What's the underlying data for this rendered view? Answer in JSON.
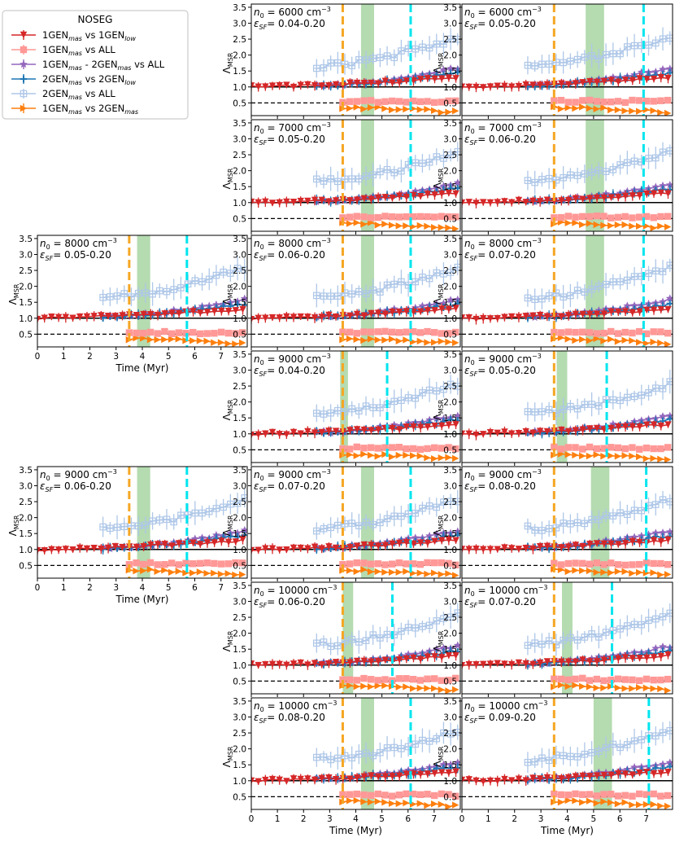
{
  "legend": {
    "title": "NOSEG",
    "entries": [
      {
        "key": "1gm_vs_1gl",
        "label": "1GEN",
        "sub": "mas",
        "mid": " vs 1GEN",
        "sub2": "low",
        "tail": "",
        "color": "#d62728",
        "marker": "tri_down"
      },
      {
        "key": "1gm_vs_all",
        "label": "1GEN",
        "sub": "mas",
        "mid": " vs ALL",
        "sub2": "",
        "tail": "",
        "color": "#ff9896",
        "marker": "square"
      },
      {
        "key": "1gm_2gm_vs_all",
        "label": "1GEN",
        "sub": "mas",
        "mid": " - 2GEN",
        "sub2": "mas",
        "tail": " vs ALL",
        "color": "#9467bd",
        "marker": "star"
      },
      {
        "key": "2gm_vs_2gl",
        "label": "2GEN",
        "sub": "mas",
        "mid": " vs 2GEN",
        "sub2": "low",
        "tail": "",
        "color": "#1f77b4",
        "marker": "plus"
      },
      {
        "key": "2gm_vs_all",
        "label": "2GEN",
        "sub": "mas",
        "mid": " vs ALL",
        "sub2": "",
        "tail": "",
        "color": "#aec7e8",
        "marker": "plus_square"
      },
      {
        "key": "1gm_vs_2gm",
        "label": "1GEN",
        "sub": "mas",
        "mid": " vs 2GEN",
        "sub2": "mas",
        "tail": "",
        "color": "#ff7f0e",
        "marker": "tri_right"
      }
    ]
  },
  "axes": {
    "ylabel": "Λ",
    "ylabel_sub": "MSR",
    "xlabel": "Time (Myr)",
    "yticks": [
      "0.5",
      "1.0",
      "1.5",
      "2.0",
      "2.5",
      "3.0",
      "3.5"
    ],
    "xticks": [
      "0",
      "1",
      "2",
      "3",
      "4",
      "5",
      "6",
      "7"
    ],
    "n0_prefix": "n",
    "n0_sub": "0",
    "n0_unit": "cm",
    "n0_exp": "−3",
    "eps_symbol": "ε",
    "eps_sub": "SF"
  },
  "colors": {
    "vline_orange": "#f5a623",
    "vline_cyan": "#00e5ee",
    "band": "#a8d5a2"
  },
  "chart_data": {
    "type": "line",
    "xlim": [
      0,
      8
    ],
    "ylim": [
      0.1,
      3.6
    ],
    "reference_lines": {
      "solid": 1.0,
      "dashed": 0.5
    },
    "panels": [
      {
        "id": "6000-0.04",
        "n0": "6000",
        "eps": "0.04-0.20",
        "orange": 3.5,
        "cyan": 6.1,
        "band": [
          4.2,
          4.7
        ]
      },
      {
        "id": "6000-0.05",
        "n0": "6000",
        "eps": "0.05-0.20",
        "orange": 3.5,
        "cyan": 6.9,
        "band": [
          4.7,
          5.4
        ]
      },
      {
        "id": "7000-0.05",
        "n0": "7000",
        "eps": "0.05-0.20",
        "orange": 3.5,
        "cyan": 6.1,
        "band": [
          4.2,
          4.7
        ]
      },
      {
        "id": "7000-0.06",
        "n0": "7000",
        "eps": "0.06-0.20",
        "orange": 3.5,
        "cyan": 6.9,
        "band": [
          4.7,
          5.4
        ]
      },
      {
        "id": "8000-0.05",
        "n0": "8000",
        "eps": "0.05-0.20",
        "orange": 3.5,
        "cyan": 5.7,
        "band": [
          3.8,
          4.3
        ]
      },
      {
        "id": "8000-0.06",
        "n0": "8000",
        "eps": "0.06-0.20",
        "orange": 3.5,
        "cyan": 6.1,
        "band": [
          4.2,
          4.7
        ]
      },
      {
        "id": "8000-0.07",
        "n0": "8000",
        "eps": "0.07-0.20",
        "orange": 3.5,
        "cyan": 6.9,
        "band": [
          4.7,
          5.4
        ]
      },
      {
        "id": "9000-0.04",
        "n0": "9000",
        "eps": "0.04-0.20",
        "orange": 3.5,
        "cyan": 5.2,
        "band": [
          3.4,
          3.7
        ]
      },
      {
        "id": "9000-0.05",
        "n0": "9000",
        "eps": "0.05-0.20",
        "orange": 3.5,
        "cyan": 5.5,
        "band": [
          3.6,
          4.0
        ]
      },
      {
        "id": "9000-0.06",
        "n0": "9000",
        "eps": "0.06-0.20",
        "orange": 3.5,
        "cyan": 5.7,
        "band": [
          3.8,
          4.3
        ]
      },
      {
        "id": "9000-0.07",
        "n0": "9000",
        "eps": "0.07-0.20",
        "orange": 3.5,
        "cyan": 6.1,
        "band": [
          4.2,
          4.7
        ]
      },
      {
        "id": "9000-0.08",
        "n0": "9000",
        "eps": "0.08-0.20",
        "orange": 3.5,
        "cyan": 7.0,
        "band": [
          4.9,
          5.6
        ]
      },
      {
        "id": "10000-0.06",
        "n0": "10000",
        "eps": "0.06-0.20",
        "orange": 3.5,
        "cyan": 5.4,
        "band": [
          3.5,
          3.9
        ]
      },
      {
        "id": "10000-0.07",
        "n0": "10000",
        "eps": "0.07-0.20",
        "orange": 3.5,
        "cyan": 5.7,
        "band": [
          3.8,
          4.2
        ]
      },
      {
        "id": "10000-0.08",
        "n0": "10000",
        "eps": "0.08-0.20",
        "orange": 3.5,
        "cyan": 6.1,
        "band": [
          4.2,
          4.7
        ]
      },
      {
        "id": "10000-0.09",
        "n0": "10000",
        "eps": "0.09-0.20",
        "orange": 3.5,
        "cyan": 7.1,
        "band": [
          5.0,
          5.7
        ]
      }
    ],
    "series_templates": {
      "1gm_vs_1gl": {
        "start": 0.0,
        "y0": 1.0,
        "y1": 1.3
      },
      "1gm_vs_all": {
        "start_orange": true,
        "y0": 0.55,
        "y1": 0.55
      },
      "1gm_2gm_vs_all": {
        "start": 2.5,
        "y0": 1.05,
        "y1": 1.6
      },
      "2gm_vs_2gl": {
        "start": 2.5,
        "y0": 1.05,
        "y1": 1.45
      },
      "2gm_vs_all": {
        "start": 2.5,
        "y0": 1.65,
        "y1": 2.6
      },
      "1gm_vs_2gm": {
        "start_orange": true,
        "y0": 0.35,
        "y1": 0.2
      }
    }
  }
}
